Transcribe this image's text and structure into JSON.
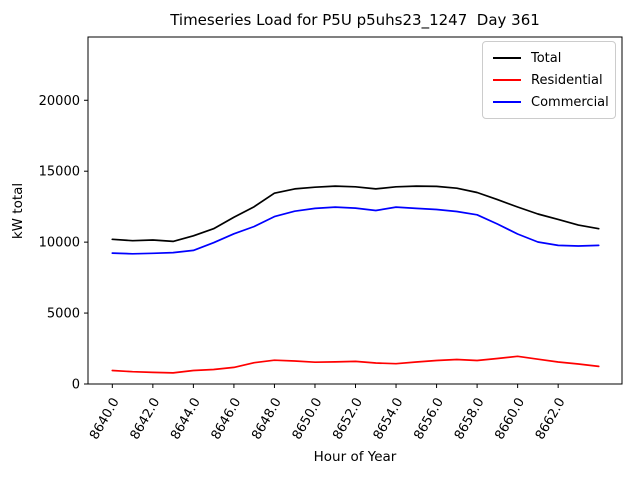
{
  "figure": {
    "title": "Timeseries Load for P5U p5uhs23_1247  Day 361",
    "xlabel": "Hour of Year",
    "ylabel": "kW total"
  },
  "legend": {
    "position": "upper right",
    "items": [
      {
        "label": "Total",
        "color": "#000000"
      },
      {
        "label": "Residential",
        "color": "#ff0000"
      },
      {
        "label": "Commercial",
        "color": "#0000ff"
      }
    ]
  },
  "chart_data": {
    "type": "line",
    "title": "Timeseries Load for P5U p5uhs23_1247  Day 361",
    "xlabel": "Hour of Year",
    "ylabel": "kW total",
    "grid": false,
    "legend_position": "upper right",
    "xlim": [
      8638.8,
      8665.15
    ],
    "ylim": [
      0,
      24460
    ],
    "xtick_labels": [
      "8640.0",
      "8642.0",
      "8644.0",
      "8646.0",
      "8648.0",
      "8650.0",
      "8652.0",
      "8654.0",
      "8656.0",
      "8658.0",
      "8660.0",
      "8662.0"
    ],
    "xtick_values": [
      8640,
      8642,
      8644,
      8646,
      8648,
      8650,
      8652,
      8654,
      8656,
      8658,
      8660,
      8662
    ],
    "ytick_values": [
      0,
      5000,
      10000,
      15000,
      20000
    ],
    "ytick_labels": [
      "0",
      "5000",
      "10000",
      "15000",
      "20000"
    ],
    "xtick_rotation_deg": 60,
    "x": [
      8640,
      8641,
      8642,
      8643,
      8644,
      8645,
      8646,
      8647,
      8648,
      8649,
      8650,
      8651,
      8652,
      8653,
      8654,
      8655,
      8656,
      8657,
      8658,
      8659,
      8660,
      8661,
      8662,
      8663,
      8664
    ],
    "series": [
      {
        "name": "Total",
        "color": "#000000",
        "values": [
          10200,
          10100,
          10150,
          10050,
          10450,
          10950,
          11750,
          12500,
          13450,
          13750,
          13870,
          13950,
          13900,
          13750,
          13900,
          13950,
          13930,
          13800,
          13500,
          13000,
          12480,
          11980,
          11600,
          11200,
          10950
        ]
      },
      {
        "name": "Residential",
        "color": "#ff0000",
        "values": [
          950,
          870,
          820,
          780,
          950,
          1020,
          1170,
          1500,
          1680,
          1620,
          1540,
          1560,
          1590,
          1480,
          1430,
          1550,
          1660,
          1730,
          1660,
          1800,
          1950,
          1750,
          1550,
          1410,
          1240
        ]
      },
      {
        "name": "Commercial",
        "color": "#0000ff",
        "values": [
          9230,
          9180,
          9210,
          9260,
          9420,
          9960,
          10590,
          11100,
          11800,
          12180,
          12380,
          12470,
          12400,
          12230,
          12470,
          12380,
          12300,
          12160,
          11930,
          11280,
          10570,
          10010,
          9770,
          9730,
          9770
        ]
      }
    ]
  }
}
